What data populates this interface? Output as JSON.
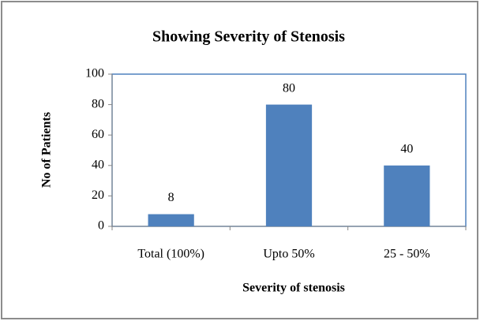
{
  "chart_data": {
    "type": "bar",
    "title": "Showing Severity of Stenosis",
    "x_label": "Severity of stenosis",
    "y_label": "No of Patients",
    "categories": [
      "Total (100%)",
      "Upto 50%",
      "25 - 50%"
    ],
    "values": [
      8,
      80,
      40
    ],
    "color": "#4f81bd",
    "ylim": [
      0,
      100
    ],
    "yticks": [
      0,
      20,
      40,
      60,
      80,
      100
    ],
    "grid": false
  }
}
